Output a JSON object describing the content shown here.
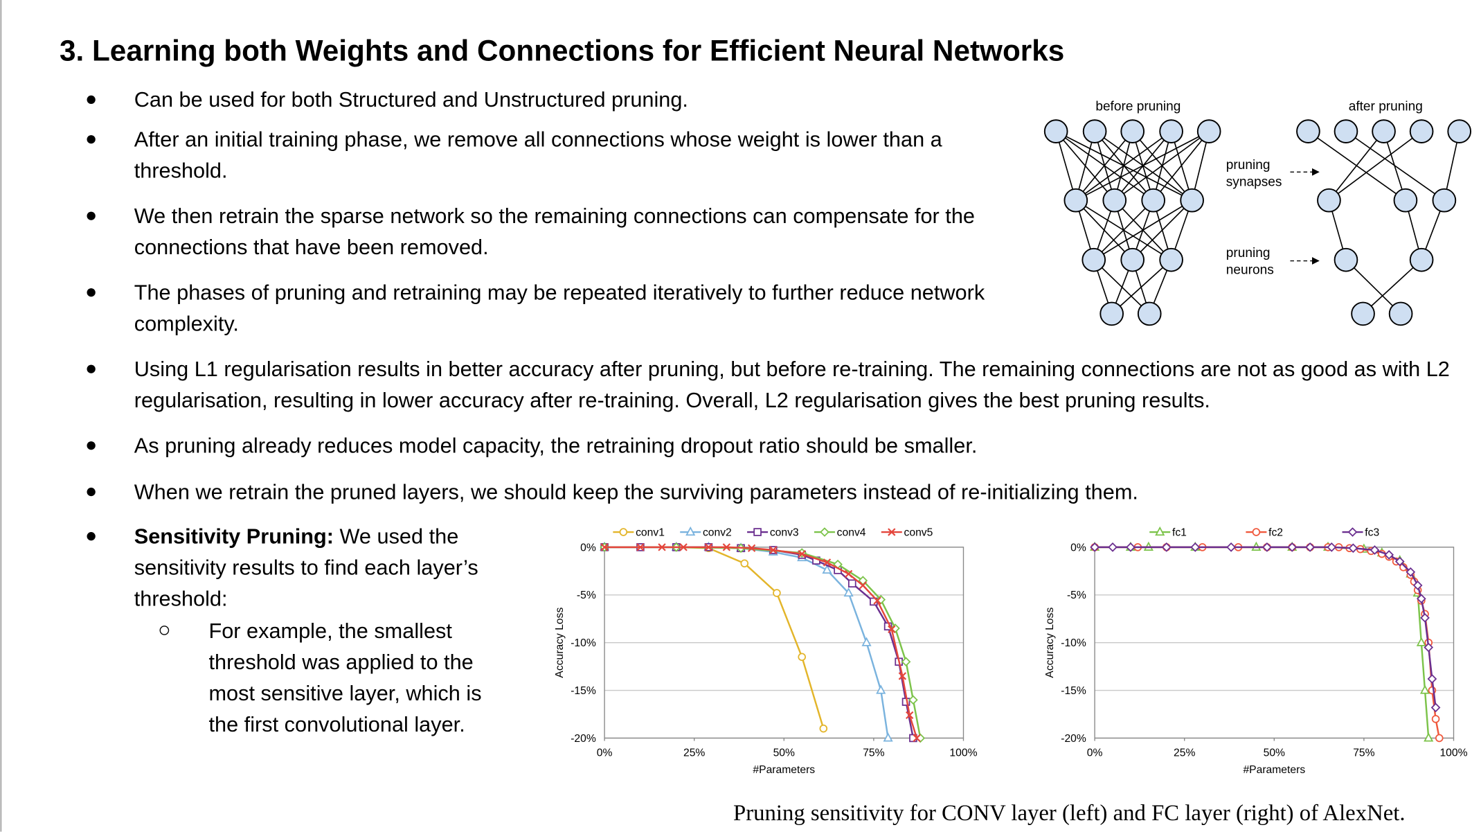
{
  "title": "3. Learning both Weights and Connections for Efficient Neural Networks",
  "bullets": [
    "Can be used for both Structured and Unstructured pruning.",
    "After an initial training phase, we remove all connections whose weight is lower than a threshold.",
    "We then retrain the sparse network so the remaining connections can compensate for the connections that have been removed.",
    "The phases of pruning and retraining may be repeated iteratively to further reduce network complexity.",
    "Using L1 regularisation results in better accuracy after pruning, but before re-training. The remaining connections are not as good as with L2 regularisation, resulting in lower accuracy after re-training. Overall, L2 regularisation gives the best pruning results.",
    "As pruning already reduces model capacity, the retraining dropout ratio should be smaller.",
    "When we retrain the pruned layers, we should keep the surviving parameters instead of re-initializing them."
  ],
  "sensitivity": {
    "label": "Sensitivity Pruning:",
    "text": "We used the sensitivity results to find each layer’s threshold:",
    "sub": [
      "For example, the smallest threshold was applied to the most sensitive layer, which is the first convolutional layer."
    ]
  },
  "diagram": {
    "before": "before pruning",
    "after": "after pruning",
    "synapses": "pruning synapses",
    "neurons": "pruning neurons"
  },
  "chart_data": [
    {
      "type": "line",
      "xlabel": "#Parameters",
      "ylabel": "Accuracy Loss",
      "xlim": [
        0,
        100
      ],
      "ylim": [
        -20,
        0
      ],
      "grid": true,
      "legend": "top",
      "xticks": [
        {
          "value": 0,
          "label": "0%"
        },
        {
          "value": 25,
          "label": "25%"
        },
        {
          "value": 50,
          "label": "50%"
        },
        {
          "value": 75,
          "label": "75%"
        },
        {
          "value": 100,
          "label": "100%"
        }
      ],
      "yticks": [
        {
          "value": 0,
          "label": "0%"
        },
        {
          "value": -5,
          "label": "-5%"
        },
        {
          "value": -10,
          "label": "-10%"
        },
        {
          "value": -15,
          "label": "-15%"
        },
        {
          "value": -20,
          "label": "-20%"
        }
      ],
      "series": [
        {
          "name": "conv1",
          "color": "#e3b52a",
          "marker": "circle",
          "x": [
            0,
            10,
            20,
            29,
            39,
            48,
            55,
            61
          ],
          "values": [
            0,
            0,
            0,
            -0.1,
            -1.7,
            -4.8,
            -11.5,
            -19
          ]
        },
        {
          "name": "conv2",
          "color": "#7ab3de",
          "marker": "triangle",
          "x": [
            0,
            20,
            29,
            38,
            47,
            55,
            62,
            68,
            73,
            77,
            79
          ],
          "values": [
            0,
            0,
            0,
            -0.1,
            -0.5,
            -1.1,
            -2.4,
            -4.8,
            -10,
            -15,
            -20
          ]
        },
        {
          "name": "conv3",
          "color": "#6b2f8f",
          "marker": "square",
          "x": [
            0,
            10,
            20,
            29,
            38,
            47,
            55,
            59,
            65,
            69,
            75,
            79,
            82,
            84,
            86
          ],
          "values": [
            0,
            0,
            0,
            0,
            -0.1,
            -0.3,
            -0.8,
            -1.4,
            -2.4,
            -3.8,
            -5.7,
            -8.3,
            -12,
            -16.2,
            -20
          ]
        },
        {
          "name": "conv4",
          "color": "#7cc34a",
          "marker": "diamond",
          "x": [
            0,
            20,
            38,
            55,
            65,
            72,
            77,
            81,
            84,
            86,
            88
          ],
          "values": [
            0,
            0,
            -0.1,
            -0.6,
            -1.8,
            -3.5,
            -5.5,
            -8.5,
            -12,
            -16,
            -20
          ]
        },
        {
          "name": "conv5",
          "color": "#e4463c",
          "marker": "x",
          "x": [
            0,
            10,
            16,
            22,
            29,
            34,
            41,
            47,
            55,
            62,
            68,
            72,
            76,
            80,
            83,
            85,
            87
          ],
          "values": [
            0,
            0,
            0,
            0,
            0,
            0,
            -0.1,
            -0.3,
            -0.7,
            -1.6,
            -2.8,
            -4,
            -5.6,
            -8.6,
            -13.5,
            -17.6,
            -20
          ]
        }
      ]
    },
    {
      "type": "line",
      "xlabel": "#Parameters",
      "ylabel": "Accuracy Loss",
      "xlim": [
        0,
        100
      ],
      "ylim": [
        -20,
        0
      ],
      "grid": true,
      "legend": "top",
      "xticks": [
        {
          "value": 0,
          "label": "0%"
        },
        {
          "value": 25,
          "label": "25%"
        },
        {
          "value": 50,
          "label": "50%"
        },
        {
          "value": 75,
          "label": "75%"
        },
        {
          "value": 100,
          "label": "100%"
        }
      ],
      "yticks": [
        {
          "value": 0,
          "label": "0%"
        },
        {
          "value": -5,
          "label": "-5%"
        },
        {
          "value": -10,
          "label": "-10%"
        },
        {
          "value": -15,
          "label": "-15%"
        },
        {
          "value": -20,
          "label": "-20%"
        }
      ],
      "series": [
        {
          "name": "fc1",
          "color": "#7cc34a",
          "marker": "triangle",
          "x": [
            0,
            10,
            15,
            28,
            45,
            55,
            65,
            75,
            80,
            85,
            88,
            90,
            91,
            92,
            93
          ],
          "values": [
            0,
            0,
            0,
            0,
            0,
            0,
            0,
            -0.2,
            -0.6,
            -1.4,
            -2.8,
            -4.8,
            -10,
            -15,
            -20
          ]
        },
        {
          "name": "fc2",
          "color": "#f0583c",
          "marker": "circle",
          "x": [
            0,
            12,
            20,
            30,
            40,
            48,
            55,
            60,
            65,
            68,
            71,
            74,
            77,
            80,
            82,
            84,
            86,
            88,
            89,
            90,
            91,
            92,
            93,
            94,
            95,
            96
          ],
          "values": [
            0,
            0,
            0,
            0,
            0,
            0,
            0,
            0,
            0,
            0,
            -0.1,
            -0.2,
            -0.4,
            -0.7,
            -1,
            -1.5,
            -2.1,
            -2.9,
            -3.6,
            -4.5,
            -5.6,
            -7,
            -10,
            -15,
            -18,
            -20
          ]
        },
        {
          "name": "fc3",
          "color": "#6b2f8f",
          "marker": "diamond",
          "x": [
            0,
            5,
            10,
            20,
            28,
            38,
            48,
            55,
            60,
            66,
            72,
            78,
            82,
            85,
            88,
            90,
            91,
            92,
            93,
            94,
            95
          ],
          "values": [
            0,
            0,
            0,
            0,
            0,
            0,
            0,
            0,
            0,
            0,
            -0.1,
            -0.3,
            -0.8,
            -1.5,
            -2.6,
            -4,
            -5.4,
            -7.4,
            -10.5,
            -13.8,
            -16.8
          ]
        }
      ]
    }
  ],
  "caption": "Pruning sensitivity for CONV layer (left) and FC layer (right) of AlexNet."
}
